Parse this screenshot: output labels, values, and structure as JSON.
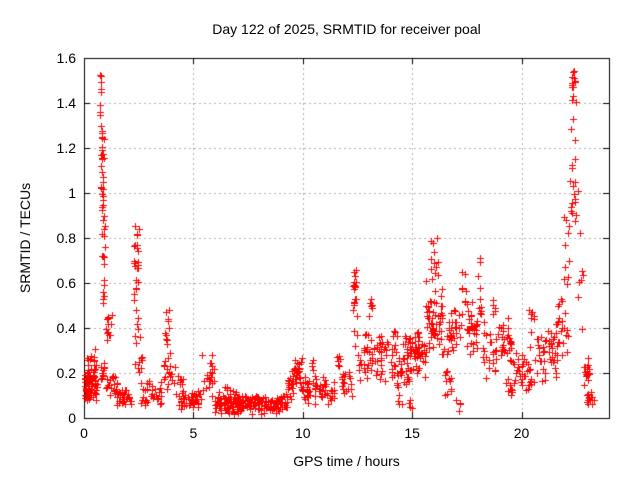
{
  "figure": {
    "background_color": "#ffffff",
    "border_color": "#000000"
  },
  "chart_data": {
    "type": "scatter",
    "title": "Day 122 of 2025, SRMTID for receiver poal",
    "xlabel": "GPS time / hours",
    "ylabel": "SRMTID / TECUs",
    "xlim": [
      0,
      24
    ],
    "ylim": [
      0,
      1.6
    ],
    "xticks": [
      {
        "value": 0,
        "label": "0"
      },
      {
        "value": 5,
        "label": "5"
      },
      {
        "value": 10,
        "label": "10"
      },
      {
        "value": 15,
        "label": "15"
      },
      {
        "value": 20,
        "label": "20"
      }
    ],
    "yticks": [
      {
        "value": 0,
        "label": "0"
      },
      {
        "value": 0.2,
        "label": "0.2"
      },
      {
        "value": 0.4,
        "label": "0.4"
      },
      {
        "value": 0.6,
        "label": "0.6"
      },
      {
        "value": 0.8,
        "label": "0.8"
      },
      {
        "value": 1,
        "label": "1"
      },
      {
        "value": 1.2,
        "label": "1.2"
      },
      {
        "value": 1.4,
        "label": "1.4"
      },
      {
        "value": 1.6,
        "label": "1.6"
      }
    ],
    "grid": {
      "show": true,
      "color": "#b0b0b0",
      "style": "dashed",
      "at_interior_ticks_only": true
    },
    "marker": {
      "glyph": "plus",
      "color": "#ff0000",
      "size": 7
    },
    "legend": "none",
    "series_name": "SRMTID",
    "notes": "Dense scatter of ~1300 red plus markers; quiet band 0.02-0.11 TECUs between 6h and 9.3h; major spikes to 1.5 near 0.8h and to 1.57 near 22.4h; secondary spikes 0.85 at 2.4h, 0.81 at 16h, 0.73 at 18.1h, 0.68 at 12.4h",
    "clusters_format": [
      "x_start_hours",
      "x_end_hours",
      "y_min_tecu",
      "y_max_tecu",
      "point_count",
      "distribution_0uniform_1centered"
    ],
    "clusters": [
      [
        0.02,
        0.58,
        0.06,
        0.27,
        80,
        1
      ],
      [
        0.05,
        0.5,
        0.25,
        0.32,
        6,
        0
      ],
      [
        0.72,
        0.8,
        1.45,
        1.53,
        5,
        0
      ],
      [
        0.74,
        0.8,
        1.34,
        1.42,
        3,
        0
      ],
      [
        0.76,
        0.82,
        1.26,
        1.33,
        3,
        0
      ],
      [
        0.78,
        0.9,
        1.0,
        1.26,
        18,
        0
      ],
      [
        0.8,
        0.92,
        0.86,
        1.0,
        8,
        0
      ],
      [
        0.82,
        0.97,
        0.6,
        0.86,
        10,
        0
      ],
      [
        0.85,
        1.0,
        0.5,
        0.62,
        7,
        0
      ],
      [
        0.9,
        1.1,
        0.3,
        0.5,
        5,
        0
      ],
      [
        0.75,
        1.1,
        0.1,
        0.3,
        12,
        1
      ],
      [
        1.05,
        1.35,
        0.36,
        0.46,
        7,
        0
      ],
      [
        1.0,
        1.55,
        0.08,
        0.22,
        20,
        1
      ],
      [
        1.5,
        2.2,
        0.04,
        0.14,
        30,
        1
      ],
      [
        2.25,
        2.5,
        0.55,
        0.87,
        22,
        0
      ],
      [
        2.3,
        2.55,
        0.32,
        0.55,
        8,
        0
      ],
      [
        2.25,
        2.65,
        0.12,
        0.32,
        8,
        1
      ],
      [
        2.6,
        3.55,
        0.04,
        0.17,
        35,
        1
      ],
      [
        3.65,
        3.95,
        0.28,
        0.48,
        12,
        0
      ],
      [
        3.5,
        4.15,
        0.1,
        0.28,
        18,
        1
      ],
      [
        4.15,
        5.35,
        0.03,
        0.13,
        45,
        1
      ],
      [
        4.25,
        4.55,
        0.12,
        0.2,
        8,
        1
      ],
      [
        5.4,
        5.95,
        0.08,
        0.33,
        20,
        1
      ],
      [
        5.95,
        9.3,
        0.015,
        0.11,
        200,
        1
      ],
      [
        6.0,
        7.0,
        0.09,
        0.15,
        10,
        1
      ],
      [
        9.3,
        9.6,
        0.05,
        0.2,
        15,
        1
      ],
      [
        9.5,
        9.95,
        0.12,
        0.28,
        25,
        1
      ],
      [
        9.9,
        10.25,
        0.07,
        0.2,
        15,
        1
      ],
      [
        10.2,
        11.45,
        0.05,
        0.18,
        40,
        1
      ],
      [
        10.35,
        10.55,
        0.18,
        0.28,
        6,
        0
      ],
      [
        10.9,
        11.15,
        0.14,
        0.21,
        5,
        0
      ],
      [
        11.55,
        11.78,
        0.2,
        0.3,
        6,
        0
      ],
      [
        11.75,
        12.25,
        0.08,
        0.23,
        18,
        1
      ],
      [
        12.28,
        12.5,
        0.3,
        0.68,
        14,
        0
      ],
      [
        12.3,
        12.48,
        0.55,
        0.67,
        6,
        0
      ],
      [
        12.5,
        13.3,
        0.15,
        0.4,
        30,
        1
      ],
      [
        13.0,
        13.17,
        0.4,
        0.56,
        6,
        0
      ],
      [
        13.3,
        14.9,
        0.13,
        0.4,
        85,
        1
      ],
      [
        14.35,
        15.05,
        0.04,
        0.13,
        8,
        0
      ],
      [
        14.9,
        15.65,
        0.17,
        0.43,
        45,
        1
      ],
      [
        15.65,
        16.35,
        0.28,
        0.62,
        50,
        1
      ],
      [
        15.85,
        16.2,
        0.6,
        0.81,
        12,
        0
      ],
      [
        16.35,
        17.25,
        0.18,
        0.52,
        38,
        1
      ],
      [
        16.5,
        17.2,
        0.03,
        0.18,
        12,
        0
      ],
      [
        17.25,
        17.45,
        0.45,
        0.66,
        8,
        0
      ],
      [
        17.45,
        18.0,
        0.25,
        0.55,
        28,
        1
      ],
      [
        18.0,
        18.2,
        0.45,
        0.73,
        10,
        0
      ],
      [
        18.2,
        19.55,
        0.17,
        0.45,
        55,
        1
      ],
      [
        18.65,
        18.82,
        0.45,
        0.55,
        5,
        0
      ],
      [
        19.2,
        19.6,
        0.1,
        0.18,
        8,
        0
      ],
      [
        19.6,
        20.35,
        0.1,
        0.3,
        30,
        1
      ],
      [
        20.35,
        20.6,
        0.15,
        0.52,
        14,
        0
      ],
      [
        20.6,
        21.65,
        0.14,
        0.45,
        45,
        1
      ],
      [
        21.65,
        22.15,
        0.25,
        0.55,
        20,
        1
      ],
      [
        21.95,
        22.2,
        0.5,
        0.9,
        10,
        0
      ],
      [
        22.2,
        22.5,
        0.85,
        1.45,
        22,
        0
      ],
      [
        22.28,
        22.45,
        1.45,
        1.57,
        10,
        0
      ],
      [
        22.55,
        22.95,
        0.35,
        1.05,
        8,
        0
      ],
      [
        22.85,
        23.1,
        0.14,
        0.28,
        15,
        1
      ],
      [
        23.0,
        23.3,
        0.04,
        0.15,
        15,
        1
      ]
    ]
  }
}
